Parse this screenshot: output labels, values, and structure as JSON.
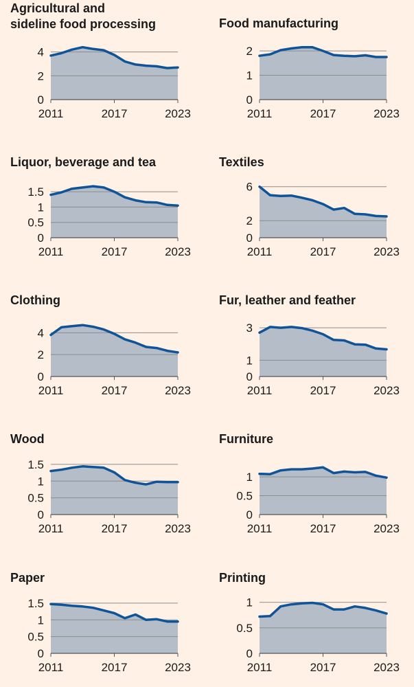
{
  "chart_data": [
    {
      "type": "area",
      "title": "Agricultural and sideline food processing",
      "x": [
        2011,
        2012,
        2013,
        2014,
        2015,
        2016,
        2017,
        2018,
        2019,
        2020,
        2021,
        2022,
        2023
      ],
      "values": [
        3.7,
        3.9,
        4.2,
        4.4,
        4.25,
        4.15,
        3.75,
        3.2,
        2.95,
        2.85,
        2.8,
        2.65,
        2.7
      ],
      "yticks": [
        "0",
        "2",
        "4"
      ],
      "ylim": [
        0,
        4.5
      ],
      "xticks": [
        "2011",
        "2017",
        "2023"
      ]
    },
    {
      "type": "area",
      "title": "Food manufacturing",
      "x": [
        2011,
        2012,
        2013,
        2014,
        2015,
        2016,
        2017,
        2018,
        2019,
        2020,
        2021,
        2022,
        2023
      ],
      "values": [
        1.8,
        1.86,
        2.03,
        2.1,
        2.15,
        2.15,
        2.0,
        1.83,
        1.8,
        1.78,
        1.82,
        1.75,
        1.75
      ],
      "yticks": [
        "0",
        "1",
        "2"
      ],
      "ylim": [
        0,
        2.2
      ],
      "xticks": [
        "2011",
        "2017",
        "2023"
      ]
    },
    {
      "type": "area",
      "title": "Liquor, beverage and tea",
      "x": [
        2011,
        2012,
        2013,
        2014,
        2015,
        2016,
        2017,
        2018,
        2019,
        2020,
        2021,
        2022,
        2023
      ],
      "values": [
        1.4,
        1.48,
        1.6,
        1.64,
        1.68,
        1.64,
        1.5,
        1.32,
        1.22,
        1.16,
        1.15,
        1.07,
        1.05
      ],
      "yticks": [
        "0",
        "0.5",
        "1",
        "1.5"
      ],
      "ylim": [
        0,
        1.75
      ],
      "xticks": [
        "2011",
        "2017",
        "2023"
      ]
    },
    {
      "type": "area",
      "title": "Textiles",
      "x": [
        2011,
        2012,
        2013,
        2014,
        2015,
        2016,
        2017,
        2018,
        2019,
        2020,
        2021,
        2022,
        2023
      ],
      "values": [
        6.0,
        5.0,
        4.9,
        4.95,
        4.7,
        4.4,
        3.95,
        3.3,
        3.5,
        2.8,
        2.75,
        2.55,
        2.5
      ],
      "yticks": [
        "0",
        "2",
        "6"
      ],
      "ylim": [
        0,
        6.3
      ],
      "xticks": [
        "2011",
        "2017",
        "2023"
      ]
    },
    {
      "type": "area",
      "title": "Clothing",
      "x": [
        2011,
        2012,
        2013,
        2014,
        2015,
        2016,
        2017,
        2018,
        2019,
        2020,
        2021,
        2022,
        2023
      ],
      "values": [
        3.8,
        4.5,
        4.6,
        4.7,
        4.55,
        4.3,
        3.9,
        3.4,
        3.1,
        2.7,
        2.6,
        2.35,
        2.2
      ],
      "yticks": [
        "0",
        "2",
        "4"
      ],
      "ylim": [
        0,
        4.9
      ],
      "xticks": [
        "2011",
        "2017",
        "2023"
      ]
    },
    {
      "type": "area",
      "title": "Fur, leather and feather",
      "x": [
        2011,
        2012,
        2013,
        2014,
        2015,
        2016,
        2017,
        2018,
        2019,
        2020,
        2021,
        2022,
        2023
      ],
      "values": [
        2.7,
        3.05,
        3.0,
        3.05,
        2.98,
        2.82,
        2.6,
        2.25,
        2.22,
        1.98,
        1.96,
        1.72,
        1.67
      ],
      "yticks": [
        "0",
        "1",
        "3"
      ],
      "ylim": [
        0,
        3.3
      ],
      "xticks": [
        "2011",
        "2017",
        "2023"
      ]
    },
    {
      "type": "area",
      "title": "Wood",
      "x": [
        2011,
        2012,
        2013,
        2014,
        2015,
        2016,
        2017,
        2018,
        2019,
        2020,
        2021,
        2022,
        2023
      ],
      "values": [
        1.3,
        1.34,
        1.4,
        1.44,
        1.42,
        1.4,
        1.26,
        1.03,
        0.95,
        0.9,
        0.98,
        0.97,
        0.97
      ],
      "yticks": [
        "0",
        "0.5",
        "1",
        "1.5"
      ],
      "ylim": [
        0,
        1.6
      ],
      "xticks": [
        "2011",
        "2017",
        "2023"
      ]
    },
    {
      "type": "area",
      "title": "Furniture",
      "x": [
        2011,
        2012,
        2013,
        2014,
        2015,
        2016,
        2017,
        2018,
        2019,
        2020,
        2021,
        2022,
        2023
      ],
      "values": [
        1.08,
        1.07,
        1.17,
        1.2,
        1.2,
        1.22,
        1.25,
        1.1,
        1.14,
        1.12,
        1.13,
        1.03,
        0.98
      ],
      "yticks": [
        "0",
        "0.5",
        "1"
      ],
      "ylim": [
        0,
        1.42
      ],
      "xticks": [
        "2011",
        "2017",
        "2023"
      ]
    },
    {
      "type": "area",
      "title": "Paper",
      "x": [
        2011,
        2012,
        2013,
        2014,
        2015,
        2016,
        2017,
        2018,
        2019,
        2020,
        2021,
        2022,
        2023
      ],
      "values": [
        1.47,
        1.45,
        1.42,
        1.4,
        1.36,
        1.28,
        1.2,
        1.05,
        1.16,
        1.0,
        1.02,
        0.95,
        0.95
      ],
      "yticks": [
        "0",
        "0.5",
        "1",
        "1.5"
      ],
      "ylim": [
        0,
        1.6
      ],
      "xticks": [
        "2011",
        "2017",
        "2023"
      ]
    },
    {
      "type": "area",
      "title": "Printing",
      "x": [
        2011,
        2012,
        2013,
        2014,
        2015,
        2016,
        2017,
        2018,
        2019,
        2020,
        2021,
        2022,
        2023
      ],
      "values": [
        0.72,
        0.73,
        0.92,
        0.96,
        0.98,
        0.99,
        0.96,
        0.86,
        0.86,
        0.92,
        0.89,
        0.84,
        0.78
      ],
      "yticks": [
        "0",
        "0.5",
        "1"
      ],
      "ylim": [
        0,
        1.05
      ],
      "xticks": [
        "2011",
        "2017",
        "2023"
      ]
    }
  ],
  "colors": {
    "background": "#fff1e5",
    "line": "#0f5499",
    "area": "#b5bdc9",
    "grid": "#8c8c8c",
    "text": "#1a1a1a"
  }
}
